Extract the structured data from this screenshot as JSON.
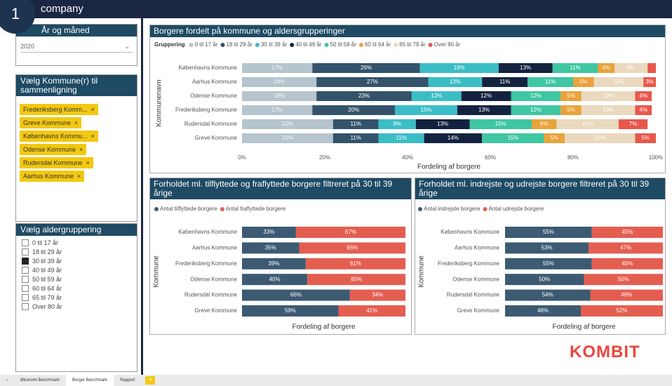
{
  "header": {
    "badge": "1",
    "company": "company"
  },
  "slicers": [
    {
      "title": "År og måned",
      "value": "2020"
    },
    {
      "title": "Vælg Kommune(r) til sammenligning",
      "items": [
        "Frederiksberg Komm...",
        "Greve Kommune",
        "Københavns Kommu...",
        "Odense Kommune",
        "Rudersdal Kommune",
        "Aarhus Kommune"
      ]
    },
    {
      "title": "Vælg aldergruppering",
      "items": [
        {
          "label": "0 til 17 år",
          "checked": false
        },
        {
          "label": "18 til 29 år",
          "checked": false
        },
        {
          "label": "30 til 39 år",
          "checked": true
        },
        {
          "label": "40 til 49 år",
          "checked": false
        },
        {
          "label": "50 til 59 år",
          "checked": false
        },
        {
          "label": "60 til 64 år",
          "checked": false
        },
        {
          "label": "65 til 79 år",
          "checked": false
        },
        {
          "label": "Over 80 år",
          "checked": false
        }
      ]
    }
  ],
  "chart_data": [
    {
      "type": "bar",
      "orientation": "horizontal",
      "stacked": true,
      "title": "Borgere fordelt på kommune og aldersgrupperinger",
      "legend_title": "Gruppering",
      "xlabel": "Fordeling af borgere",
      "ylabel": "Kommunenavn",
      "categories": [
        "Københavns Kommune",
        "Aarhus Kommune",
        "Odense Kommune",
        "Frederiksberg Kommune",
        "Rudersdal Kommune",
        "Greve Kommune"
      ],
      "xlim": [
        0,
        100
      ],
      "xticks": [
        {
          "value": 0,
          "label": "0%"
        },
        {
          "value": 20,
          "label": "20%"
        },
        {
          "value": 40,
          "label": "40%"
        },
        {
          "value": 60,
          "label": "60%"
        },
        {
          "value": 80,
          "label": "80%"
        },
        {
          "value": 100,
          "label": "100%"
        }
      ],
      "series": [
        {
          "name": "0 til 17 år",
          "color": "#b5c4cd",
          "values": [
            17,
            18,
            18,
            17,
            22,
            22
          ],
          "value_labels": [
            "17%",
            "18%",
            "18%",
            "17%",
            "22%",
            "22%"
          ]
        },
        {
          "name": "18 til 29 år",
          "color": "#34536b",
          "values": [
            26,
            27,
            23,
            20,
            11,
            11
          ],
          "value_labels": [
            "26%",
            "27%",
            "23%",
            "20%",
            "11%",
            "11%"
          ]
        },
        {
          "name": "30 til 39 år",
          "color": "#3bbdc6",
          "values": [
            19,
            13,
            12,
            15,
            9,
            11
          ],
          "value_labels": [
            "19%",
            "13%",
            "12%",
            "15%",
            "9%",
            "11%"
          ]
        },
        {
          "name": "40 til 49 år",
          "color": "#13223f",
          "values": [
            13,
            11,
            12,
            13,
            13,
            14
          ],
          "value_labels": [
            "13%",
            "11%",
            "12%",
            "13%",
            "13%",
            "14%"
          ]
        },
        {
          "name": "50 til 59 år",
          "color": "#3fc6a2",
          "values": [
            11,
            11,
            12,
            12,
            15,
            15
          ],
          "value_labels": [
            "11%",
            "11%",
            "12%",
            "12%",
            "15%",
            "15%"
          ]
        },
        {
          "name": "60 til 64 år",
          "color": "#e9a33b",
          "values": [
            4,
            5,
            5,
            5,
            6,
            5
          ],
          "value_labels": [
            "4%",
            "5%",
            "5%",
            "5%",
            "6%",
            "5%"
          ]
        },
        {
          "name": "65 til 79 år",
          "color": "#ead9be",
          "values": [
            8,
            12,
            13,
            13,
            15,
            17
          ],
          "value_labels": [
            "8%",
            "12%",
            "13%",
            "13%",
            "15%",
            "17%"
          ]
        },
        {
          "name": "Over 80 år",
          "color": "#e8574b",
          "values": [
            2,
            3,
            4,
            4,
            7,
            5
          ],
          "value_labels": [
            null,
            "3%",
            "4%",
            "4%",
            "7%",
            "5%"
          ]
        }
      ]
    },
    {
      "type": "bar",
      "orientation": "horizontal",
      "stacked": true,
      "title": "Forholdet ml. tilflyttede og fraflyttede borgere filtreret på 30 til 39 årige",
      "xlabel": "Fordeling af borgere",
      "ylabel": "Kommune",
      "categories": [
        "Københavns Kommune",
        "Aarhus Kommune",
        "Frederiksberg Kommune",
        "Odense Kommune",
        "Rudersdal Kommune",
        "Greve Kommune"
      ],
      "xlim": [
        0,
        100
      ],
      "series": [
        {
          "name": "Antal tilflyttede borgere",
          "color": "#3d5a73",
          "values": [
            33,
            35,
            39,
            40,
            66,
            59
          ],
          "value_labels": [
            "33%",
            "35%",
            "39%",
            "40%",
            "66%",
            "59%"
          ]
        },
        {
          "name": "Antal fraflyttede borgere",
          "color": "#e45e50",
          "values": [
            67,
            65,
            61,
            60,
            34,
            41
          ],
          "value_labels": [
            "67%",
            "65%",
            "61%",
            "60%",
            "34%",
            "41%"
          ]
        }
      ]
    },
    {
      "type": "bar",
      "orientation": "horizontal",
      "stacked": true,
      "title": "Forholdet ml. indrejste og udrejste borgere filtreret på 30 til 39 årige",
      "xlabel": "Fordeling af borgere",
      "ylabel": "Kommune",
      "categories": [
        "Københavns Kommune",
        "Aarhus Kommune",
        "Frederiksberg Kommune",
        "Odense Kommune",
        "Rudersdal Kommune",
        "Greve Kommune"
      ],
      "xlim": [
        0,
        100
      ],
      "series": [
        {
          "name": "Antal indrejste borgere",
          "color": "#3d5a73",
          "values": [
            55,
            53,
            55,
            50,
            54,
            48
          ],
          "value_labels": [
            "55%",
            "53%",
            "55%",
            "50%",
            "54%",
            "48%"
          ]
        },
        {
          "name": "Antal udrejste borgere",
          "color": "#e45e50",
          "values": [
            45,
            47,
            45,
            50,
            46,
            52
          ],
          "value_labels": [
            "45%",
            "47%",
            "45%",
            "50%",
            "46%",
            "52%"
          ]
        }
      ]
    }
  ],
  "logo": "KOMBIT",
  "tabs": [
    "Økonomi Benchmark",
    "Borger Benchmark",
    "Rapport"
  ]
}
